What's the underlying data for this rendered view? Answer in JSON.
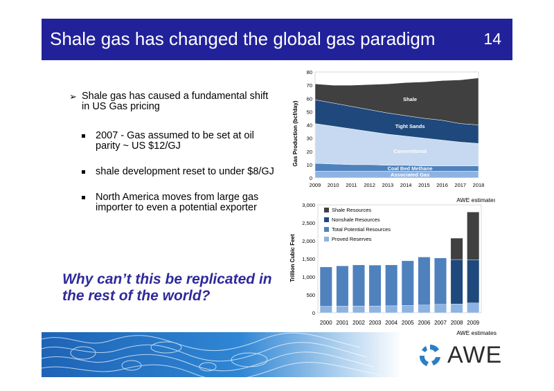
{
  "slide": {
    "title": "Shale gas has changed the global gas paradigm",
    "page_number": "14",
    "bullets": [
      {
        "level": 1,
        "marker": "➢",
        "text": "Shale gas has caused a fundamental shift in US Gas pricing"
      },
      {
        "level": 2,
        "text": "2007 - Gas assumed to be set at oil parity ~ US $12/GJ"
      },
      {
        "level": 2,
        "text": "shale development reset to under $8/GJ"
      },
      {
        "level": 2,
        "text": "North America moves from large gas importer to even a potential exporter"
      }
    ],
    "question": "Why can’t this be replicated in the rest of the world?",
    "logo_text": "AWE",
    "colors": {
      "title_bar": "#21229a",
      "question": "#2e2a9b"
    }
  },
  "chart_data": [
    {
      "type": "area",
      "stacked": true,
      "ylabel": "Gas Production (bcf/day)",
      "ylim": [
        0,
        80
      ],
      "yticks": [
        0,
        10,
        20,
        30,
        40,
        50,
        60,
        70,
        80
      ],
      "x": [
        2009,
        2010,
        2011,
        2012,
        2013,
        2014,
        2015,
        2016,
        2017,
        2018
      ],
      "series": [
        {
          "name": "Associated Gas",
          "color": "#8db3e2",
          "values": [
            5,
            5,
            5,
            5,
            5,
            5,
            5,
            5,
            5,
            5
          ]
        },
        {
          "name": "Coal Bed Methane",
          "color": "#4f81bd",
          "values": [
            6,
            5.5,
            5,
            5,
            4.5,
            4.5,
            4,
            4,
            4,
            4
          ]
        },
        {
          "name": "Conventional",
          "color": "#c6d9f1",
          "values": [
            30,
            28.5,
            27,
            25,
            23.5,
            22,
            21,
            19.5,
            18,
            17
          ]
        },
        {
          "name": "Tight Sands",
          "color": "#1f497d",
          "values": [
            18,
            17.5,
            17,
            16.5,
            16,
            15.5,
            15,
            15,
            14,
            14
          ]
        },
        {
          "name": "Shale",
          "color": "#404040",
          "values": [
            12,
            13.5,
            16,
            19,
            22,
            25,
            27.5,
            30,
            33,
            35.5
          ]
        }
      ],
      "note": "AWE estimates"
    },
    {
      "type": "bar",
      "stacked": true,
      "ylabel": "Trillion Cubic Feet",
      "ylim": [
        0,
        3000
      ],
      "yticks": [
        "0",
        "500",
        "1,000",
        "1,500",
        "2,000",
        "2,500",
        "3,000"
      ],
      "categories": [
        "2000",
        "2001",
        "2002",
        "2003",
        "2004",
        "2005",
        "2006",
        "2007",
        "2008",
        "2009"
      ],
      "series": [
        {
          "name": "Proved Reserves",
          "color": "#8db3e2",
          "values": [
            180,
            185,
            190,
            190,
            195,
            205,
            215,
            235,
            245,
            275
          ]
        },
        {
          "name": "Total Potential Resources",
          "color": "#4f81bd",
          "values": [
            1095,
            1120,
            1140,
            1135,
            1135,
            1240,
            1335,
            1290,
            0,
            0
          ]
        },
        {
          "name": "Nonshale Resources",
          "color": "#1f497d",
          "values": [
            0,
            0,
            0,
            0,
            0,
            0,
            0,
            0,
            1235,
            1195
          ]
        },
        {
          "name": "Shale Resources",
          "color": "#404040",
          "values": [
            0,
            0,
            0,
            0,
            0,
            0,
            0,
            0,
            595,
            1330
          ]
        }
      ],
      "legend_order": [
        "Shale Resources",
        "Nonshale Resources",
        "Total Potential Resources",
        "Proved Reserves"
      ],
      "legend_position": "top-left",
      "note": "AWE estimates"
    }
  ]
}
